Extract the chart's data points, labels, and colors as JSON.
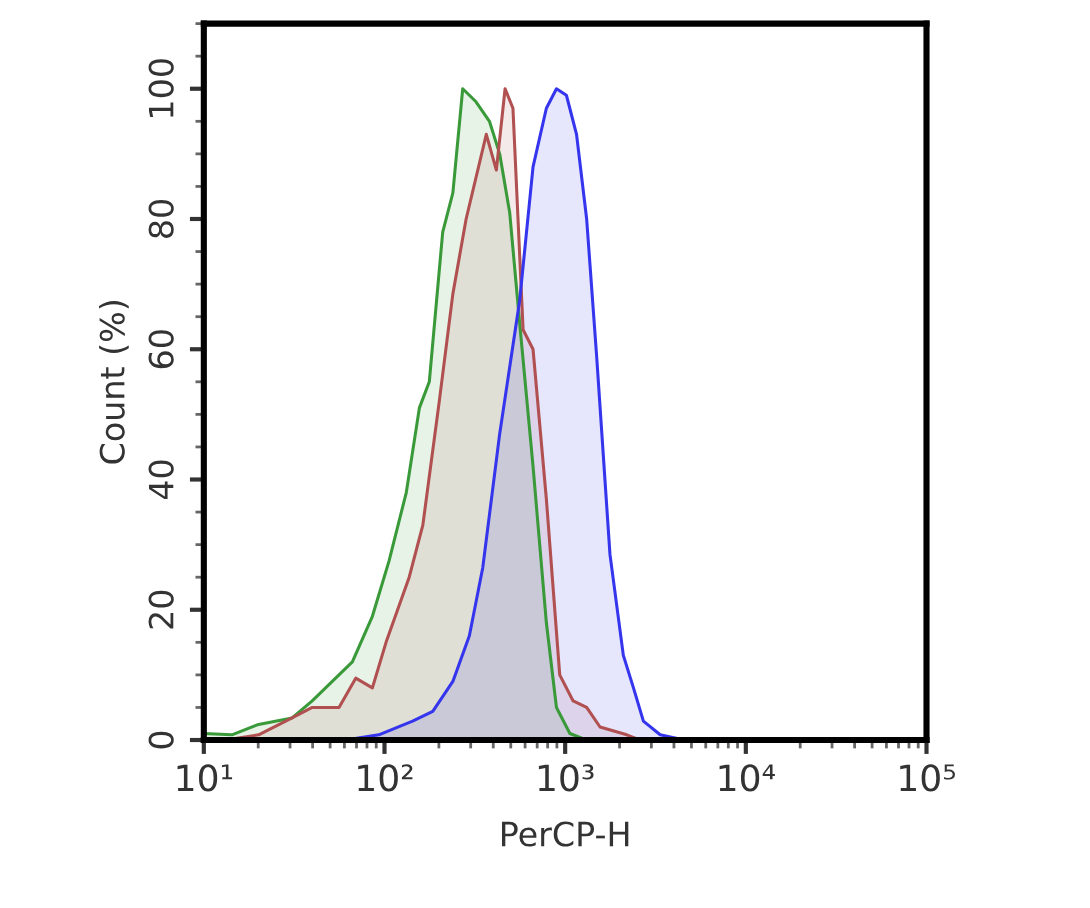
{
  "chart_data": {
    "type": "area",
    "xlabel": "PerCP-H",
    "ylabel": "Count (%)",
    "log": "x",
    "xlim": [
      10,
      100000
    ],
    "ylim": [
      0,
      110
    ],
    "xticks": [
      {
        "value": 10,
        "label": "10¹"
      },
      {
        "value": 100,
        "label": "10²"
      },
      {
        "value": 1000,
        "label": "10³"
      },
      {
        "value": 10000,
        "label": "10⁴"
      },
      {
        "value": 100000,
        "label": "10⁵"
      }
    ],
    "yticks": [
      0,
      20,
      40,
      60,
      80,
      100
    ],
    "grid": false,
    "series": [
      {
        "color": "#3a9a3a",
        "x": [
          10,
          14.3,
          20.1,
          30.8,
          39.8,
          51.4,
          66.4,
          85.7,
          106,
          132,
          156,
          177,
          210,
          239,
          271,
          321,
          381,
          434,
          493,
          560,
          664,
          787,
          895,
          1062,
          1315
        ],
        "values": [
          1,
          0.8,
          2.4,
          3.4,
          6,
          9,
          12,
          19,
          27.5,
          38,
          51,
          55,
          78,
          84,
          100,
          98,
          95,
          90,
          81,
          64,
          42,
          18,
          5,
          1,
          0
        ]
      },
      {
        "color": "#b05050",
        "x": [
          13.2,
          20.1,
          30.8,
          39.8,
          56.0,
          69.3,
          85.7,
          102,
          137,
          163,
          201,
          239,
          283,
          366,
          416,
          465,
          514,
          585,
          664,
          787,
          933,
          1107,
          1315,
          1560,
          2193,
          2600
        ],
        "values": [
          0,
          0.8,
          3.4,
          5,
          5,
          9.5,
          8,
          15,
          25,
          33,
          52,
          68.5,
          80,
          93,
          87.5,
          100,
          97,
          63,
          60,
          37,
          10,
          6,
          5,
          2,
          0.8,
          0
        ]
      },
      {
        "color": "#3535ee",
        "x": [
          61,
          93,
          143,
          185,
          239,
          295,
          350,
          434,
          560,
          664,
          787,
          895,
          1016,
          1156,
          1315,
          1493,
          1770,
          2099,
          2388,
          2710,
          3357,
          4529
        ],
        "values": [
          0,
          0.8,
          2.9,
          4.4,
          9,
          16,
          26.5,
          47,
          67.5,
          88,
          97,
          100,
          99,
          93,
          80,
          59,
          28.5,
          13,
          8,
          2.9,
          0.8,
          0
        ]
      }
    ]
  }
}
